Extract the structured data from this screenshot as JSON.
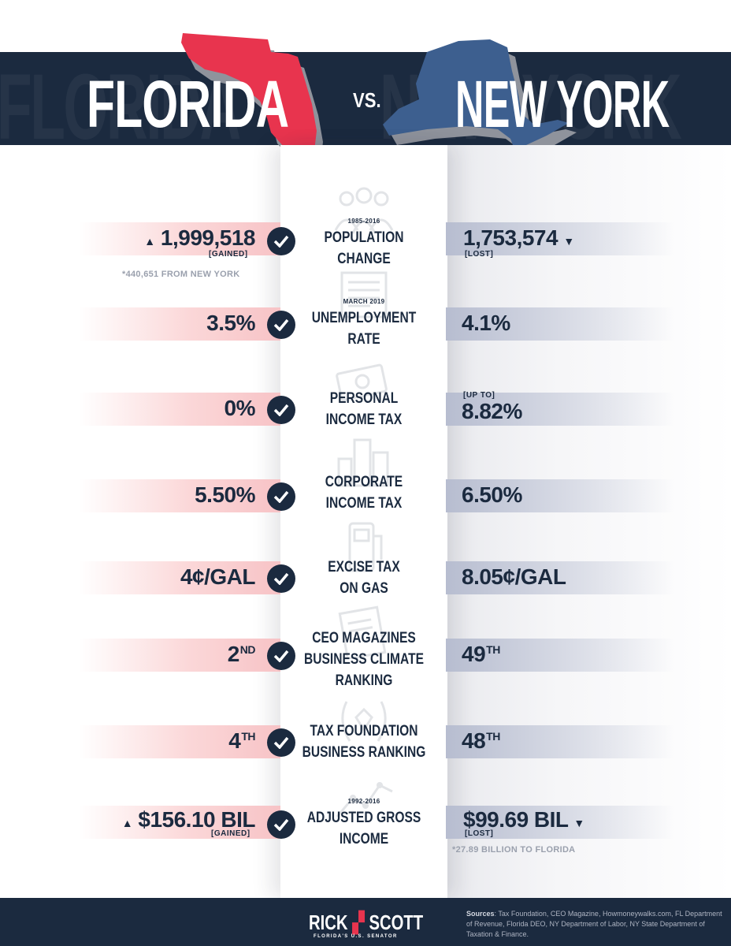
{
  "header": {
    "left_title": "FLORIDA",
    "vs": "VS.",
    "right_title": "NEW YORK",
    "left_ghost": "FLORIDA",
    "right_ghost": "NEW YORK"
  },
  "colors": {
    "navy": "#1b2a3f",
    "florida_red": "#e8344e",
    "new_york_blue": "#3d5f8f",
    "florida_bar": "#f7c3c6",
    "new_york_bar": "#b7bdd0"
  },
  "rows": [
    {
      "date": "1985-2016",
      "label_line1": "POPULATION",
      "label_line2": "CHANGE",
      "icon": "crowd-icon",
      "fl_value": "1,999,518",
      "fl_tag": "[GAINED]",
      "fl_arrow": "▲",
      "fl_note": "*440,651 FROM NEW YORK",
      "ny_value": "1,753,574",
      "ny_tag": "[LOST]",
      "ny_arrow": "▼"
    },
    {
      "date": "MARCH 2019",
      "label_line1": "UNEMPLOYMENT",
      "label_line2": "RATE",
      "icon": "newspaper-icon",
      "fl_value": "3.5%",
      "ny_value": "4.1%"
    },
    {
      "label_line1": "PERSONAL",
      "label_line2": "INCOME TAX",
      "icon": "cash-icon",
      "fl_value": "0%",
      "ny_prefix": "[UP TO]",
      "ny_value": "8.82%"
    },
    {
      "label_line1": "CORPORATE",
      "label_line2": "INCOME TAX",
      "icon": "city-icon",
      "fl_value": "5.50%",
      "ny_value": "6.50%"
    },
    {
      "label_line1": "EXCISE TAX",
      "label_line2": "ON GAS",
      "icon": "gas-pump-icon",
      "fl_value": "4¢/GAL",
      "ny_value": "8.05¢/GAL"
    },
    {
      "label_line1": "CEO MAGAZINES",
      "label_line2": "BUSINESS CLIMATE",
      "label_line3": "RANKING",
      "icon": "magazine-icon",
      "fl_value": "2",
      "fl_suffix": "ND",
      "ny_value": "49",
      "ny_suffix": "TH"
    },
    {
      "label_line1": "TAX FOUNDATION",
      "label_line2": "BUSINESS RANKING",
      "icon": "laurel-icon",
      "fl_value": "4",
      "fl_suffix": "TH",
      "ny_value": "48",
      "ny_suffix": "TH"
    },
    {
      "date": "1992-2016",
      "label_line1": "ADJUSTED GROSS",
      "label_line2": "INCOME",
      "icon": "line-chart-icon",
      "fl_value": "$156.10 BIL",
      "fl_tag": "[GAINED]",
      "fl_arrow": "▲",
      "ny_value": "$99.69 BIL",
      "ny_tag": "[LOST]",
      "ny_arrow": "▼",
      "ny_note": "*27.89 BILLION TO FLORIDA"
    }
  ],
  "footer": {
    "logo_first": "RICK",
    "logo_last": "SCOTT",
    "logo_tagline": "FLORIDA'S U.S. SENATOR",
    "sources_label": "Sources",
    "sources_text": ": Tax Foundation, CEO Magazine, Howmoneywalks.com, FL Department of Revenue, Florida DEO, NY Department of Labor, NY State Department of Taxation & Finance."
  }
}
